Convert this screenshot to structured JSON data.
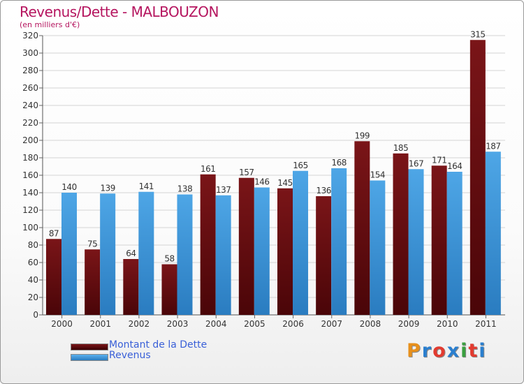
{
  "title": "Revenus/Dette - MALBOUZON",
  "subtitle": "(en milliers d'€)",
  "legend": {
    "debt_label": "Montant de la Dette",
    "revenue_label": "Revenus"
  },
  "logo": {
    "text": "Proxiti",
    "colors": [
      "#e7901c",
      "#2a7fcf",
      "#e23b30",
      "#2a7fcf",
      "#3aa040",
      "#e23b30",
      "#2a7fcf"
    ]
  },
  "colors": {
    "debt": "#7a1518",
    "debt_dark": "#4a0508",
    "revenue": "#4ea6e6",
    "revenue_dark": "#2a7cc0"
  },
  "chart_data": {
    "type": "bar",
    "title": "Revenus/Dette - MALBOUZON",
    "ylabel": "(en milliers d'€)",
    "xlabel": "",
    "ylim": [
      0,
      320
    ],
    "ytick_step": 20,
    "grid": true,
    "categories": [
      "2000",
      "2001",
      "2002",
      "2003",
      "2004",
      "2005",
      "2006",
      "2007",
      "2008",
      "2009",
      "2010",
      "2011"
    ],
    "series": [
      {
        "name": "Montant de la Dette",
        "values": [
          87,
          75,
          64,
          58,
          161,
          157,
          145,
          136,
          199,
          185,
          171,
          315
        ]
      },
      {
        "name": "Revenus",
        "values": [
          140,
          139,
          141,
          138,
          137,
          146,
          165,
          168,
          154,
          167,
          164,
          187
        ]
      }
    ]
  }
}
